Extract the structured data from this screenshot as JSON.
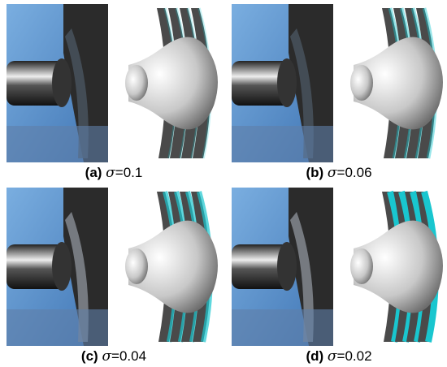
{
  "panels": [
    {
      "label": "(a)",
      "symbol": "σ",
      "value": "=0.1"
    },
    {
      "label": "(b)",
      "symbol": "σ",
      "value": "=0.06"
    },
    {
      "label": "(c)",
      "symbol": "σ",
      "value": "=0.04"
    },
    {
      "label": "(d)",
      "symbol": "σ",
      "value": "=0.02"
    }
  ]
}
